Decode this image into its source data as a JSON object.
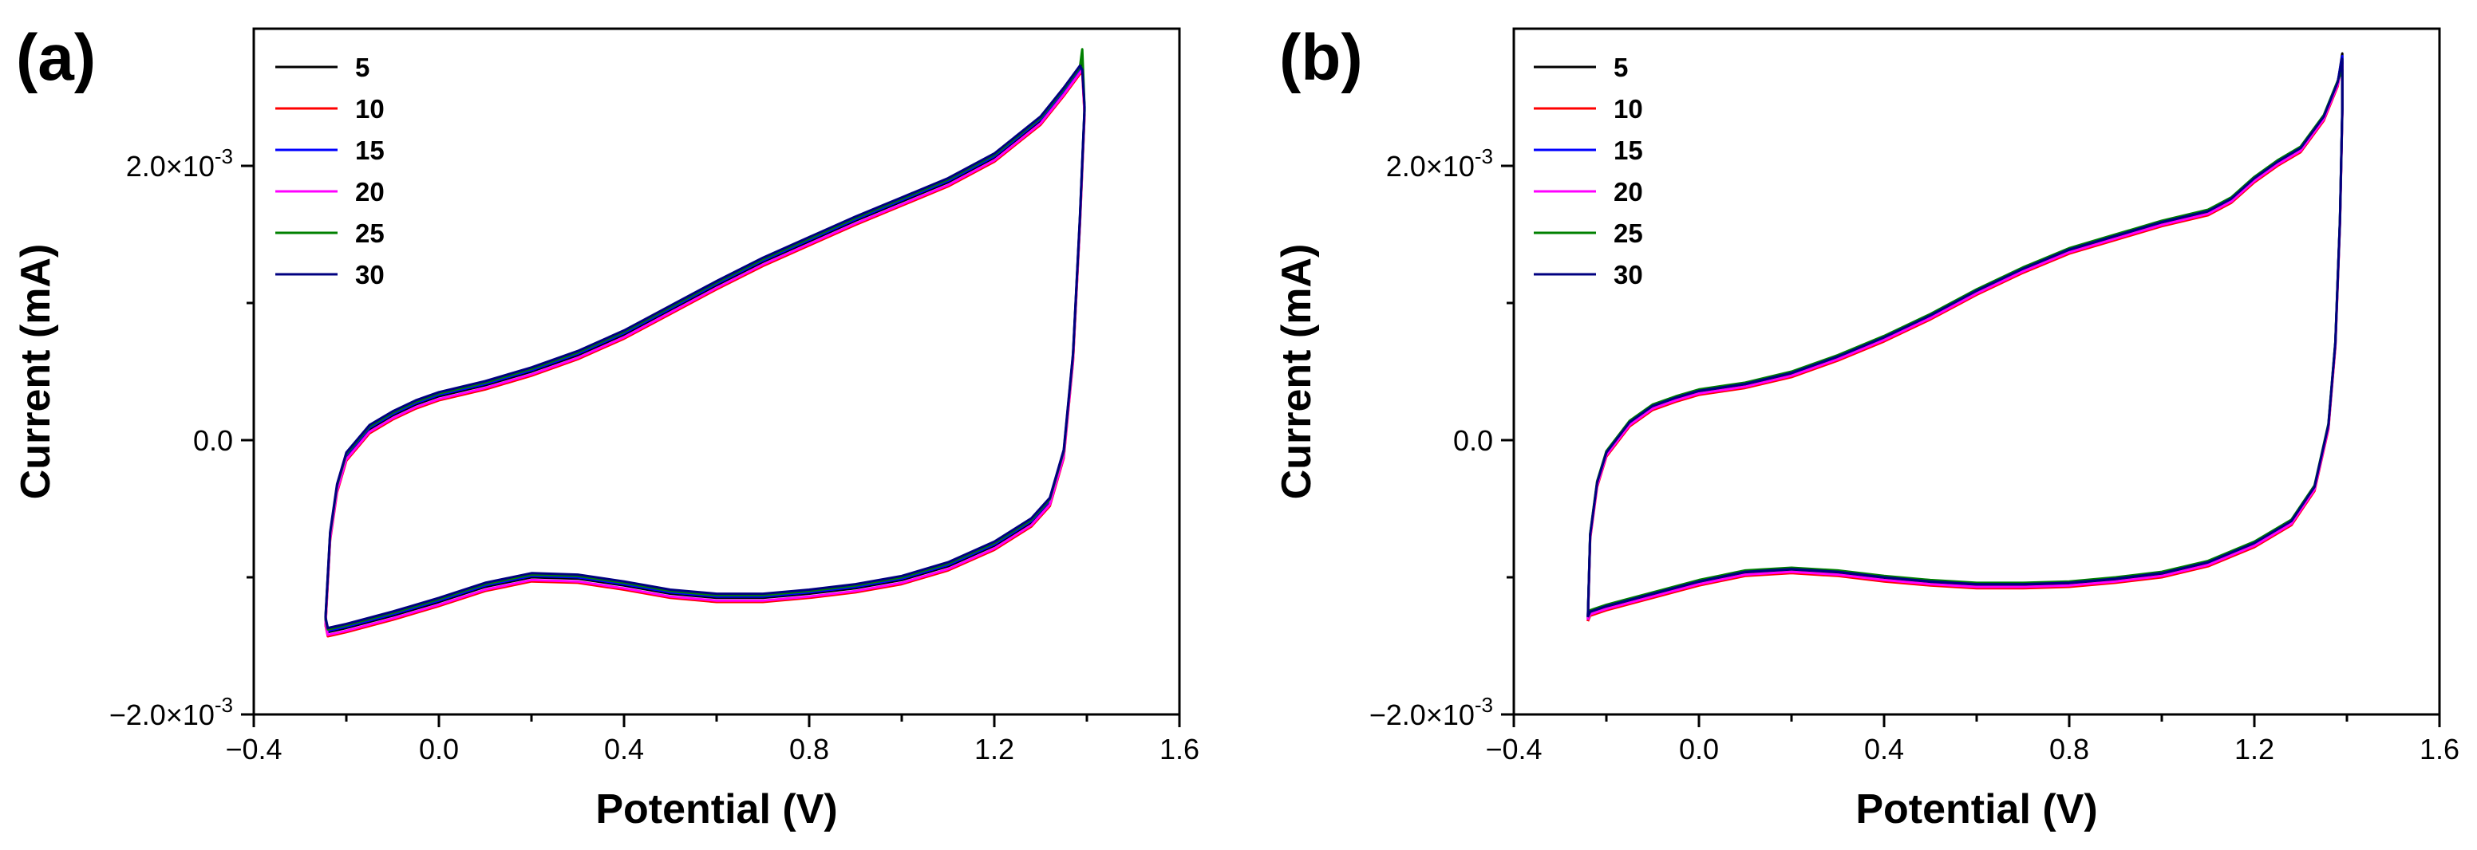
{
  "chart_data": [
    {
      "type": "line",
      "panel_label": "(a)",
      "xlabel": "Potential (V)",
      "ylabel": "Current (mA)",
      "xlim": [
        -0.4,
        1.6
      ],
      "ylim": [
        -0.002,
        0.003
      ],
      "xticks": [
        -0.4,
        0.0,
        0.4,
        0.8,
        1.2,
        1.6
      ],
      "xtick_labels": [
        "−0.4",
        "0.0",
        "0.4",
        "0.8",
        "1.2",
        "1.6"
      ],
      "yticks": [
        -0.002,
        0.0,
        0.002
      ],
      "ytick_labels": [
        {
          "base": "−2.0×10",
          "exp": "-3"
        },
        {
          "base": "0.0",
          "exp": ""
        },
        {
          "base": "2.0×10",
          "exp": "-3"
        }
      ],
      "legend_position": "top-left",
      "series": [
        {
          "name": "5",
          "color": "#000000"
        },
        {
          "name": "10",
          "color": "#ff0000"
        },
        {
          "name": "15",
          "color": "#0000ff"
        },
        {
          "name": "20",
          "color": "#ff00ff"
        },
        {
          "name": "25",
          "color": "#008000"
        },
        {
          "name": "30",
          "color": "#000080"
        }
      ],
      "cycle": {
        "anodic": [
          [
            -0.245,
            -0.00132
          ],
          [
            -0.235,
            -0.0007
          ],
          [
            -0.22,
            -0.00035
          ],
          [
            -0.2,
            -0.00012
          ],
          [
            -0.15,
            8e-05
          ],
          [
            -0.1,
            0.00018
          ],
          [
            -0.05,
            0.00026
          ],
          [
            0.0,
            0.00032
          ],
          [
            0.1,
            0.0004
          ],
          [
            0.2,
            0.0005
          ],
          [
            0.3,
            0.00062
          ],
          [
            0.4,
            0.00077
          ],
          [
            0.5,
            0.00095
          ],
          [
            0.6,
            0.00113
          ],
          [
            0.7,
            0.0013
          ],
          [
            0.8,
            0.00145
          ],
          [
            0.9,
            0.0016
          ],
          [
            1.0,
            0.00174
          ],
          [
            1.1,
            0.00188
          ],
          [
            1.2,
            0.00206
          ],
          [
            1.3,
            0.00233
          ],
          [
            1.35,
            0.00254
          ],
          [
            1.385,
            0.0027
          ]
        ],
        "cathodic": [
          [
            1.395,
            0.0024
          ],
          [
            1.385,
            0.0016
          ],
          [
            1.37,
            0.0006
          ],
          [
            1.35,
            -0.0001
          ],
          [
            1.32,
            -0.00045
          ],
          [
            1.28,
            -0.0006
          ],
          [
            1.2,
            -0.00077
          ],
          [
            1.1,
            -0.00092
          ],
          [
            1.0,
            -0.00102
          ],
          [
            0.9,
            -0.00108
          ],
          [
            0.8,
            -0.00112
          ],
          [
            0.7,
            -0.00115
          ],
          [
            0.6,
            -0.00115
          ],
          [
            0.5,
            -0.00112
          ],
          [
            0.4,
            -0.00106
          ],
          [
            0.3,
            -0.00101
          ],
          [
            0.2,
            -0.001
          ],
          [
            0.1,
            -0.00107
          ],
          [
            0.0,
            -0.00118
          ],
          [
            -0.1,
            -0.00128
          ],
          [
            -0.2,
            -0.00137
          ],
          [
            -0.24,
            -0.0014
          ],
          [
            -0.245,
            -0.00132
          ]
        ]
      },
      "cycle_shift": {
        "5": [
          0,
          0
        ],
        "10": [
          0.0,
          -3e-05
        ],
        "15": [
          0.0,
          1e-05
        ],
        "20": [
          0.0,
          -2e-05
        ],
        "25": [
          0.0,
          2e-05
        ],
        "30": [
          0.0,
          3e-05
        ]
      },
      "cycle_peak": {
        "5": 0.00275,
        "10": 0.00268,
        "15": 0.00272,
        "20": 0.0027,
        "25": 0.00285,
        "30": 0.0027
      }
    },
    {
      "type": "line",
      "panel_label": "(b)",
      "xlabel": "Potential (V)",
      "ylabel": "Current (mA)",
      "xlim": [
        -0.4,
        1.6
      ],
      "ylim": [
        -0.002,
        0.003
      ],
      "xticks": [
        -0.4,
        0.0,
        0.4,
        0.8,
        1.2,
        1.6
      ],
      "xtick_labels": [
        "−0.4",
        "0.0",
        "0.4",
        "0.8",
        "1.2",
        "1.6"
      ],
      "yticks": [
        -0.002,
        0.0,
        0.002
      ],
      "ytick_labels": [
        {
          "base": "−2.0×10",
          "exp": "-3"
        },
        {
          "base": "0.0",
          "exp": ""
        },
        {
          "base": "2.0×10",
          "exp": "-3"
        }
      ],
      "legend_position": "top-left",
      "series": [
        {
          "name": "5",
          "color": "#000000"
        },
        {
          "name": "10",
          "color": "#ff0000"
        },
        {
          "name": "15",
          "color": "#0000ff"
        },
        {
          "name": "20",
          "color": "#ff00ff"
        },
        {
          "name": "25",
          "color": "#008000"
        },
        {
          "name": "30",
          "color": "#000080"
        }
      ],
      "cycle": {
        "anodic": [
          [
            -0.24,
            -0.0013
          ],
          [
            -0.235,
            -0.0007
          ],
          [
            -0.22,
            -0.00032
          ],
          [
            -0.2,
            -0.0001
          ],
          [
            -0.15,
            0.00012
          ],
          [
            -0.1,
            0.00024
          ],
          [
            -0.05,
            0.0003
          ],
          [
            0.0,
            0.00035
          ],
          [
            0.1,
            0.0004
          ],
          [
            0.2,
            0.00048
          ],
          [
            0.3,
            0.0006
          ],
          [
            0.4,
            0.00074
          ],
          [
            0.5,
            0.0009
          ],
          [
            0.6,
            0.00108
          ],
          [
            0.7,
            0.00124
          ],
          [
            0.8,
            0.00138
          ],
          [
            0.9,
            0.00148
          ],
          [
            1.0,
            0.00158
          ],
          [
            1.1,
            0.00166
          ],
          [
            1.15,
            0.00175
          ],
          [
            1.2,
            0.0019
          ],
          [
            1.25,
            0.00202
          ],
          [
            1.3,
            0.00212
          ],
          [
            1.35,
            0.00235
          ],
          [
            1.38,
            0.0026
          ]
        ],
        "cathodic": [
          [
            1.39,
            0.0024
          ],
          [
            1.385,
            0.0016
          ],
          [
            1.375,
            0.0007
          ],
          [
            1.36,
            0.0001
          ],
          [
            1.33,
            -0.00035
          ],
          [
            1.28,
            -0.0006
          ],
          [
            1.2,
            -0.00076
          ],
          [
            1.1,
            -0.0009
          ],
          [
            1.0,
            -0.00098
          ],
          [
            0.9,
            -0.00102
          ],
          [
            0.8,
            -0.00105
          ],
          [
            0.7,
            -0.00106
          ],
          [
            0.6,
            -0.00106
          ],
          [
            0.5,
            -0.00104
          ],
          [
            0.4,
            -0.00101
          ],
          [
            0.3,
            -0.00097
          ],
          [
            0.2,
            -0.00095
          ],
          [
            0.1,
            -0.00097
          ],
          [
            0.0,
            -0.00104
          ],
          [
            -0.1,
            -0.00113
          ],
          [
            -0.2,
            -0.00122
          ],
          [
            -0.235,
            -0.00126
          ],
          [
            -0.24,
            -0.0013
          ]
        ]
      },
      "cycle_shift": {
        "5": [
          0,
          0
        ],
        "10": [
          0.0,
          -2e-05
        ],
        "15": [
          0.0,
          1e-05
        ],
        "20": [
          0.0,
          -1e-05
        ],
        "25": [
          0.0,
          2e-05
        ],
        "30": [
          0.0,
          1e-05
        ]
      },
      "cycle_peak": {
        "5": 0.00282,
        "10": 0.00276,
        "15": 0.0028,
        "20": 0.00274,
        "25": 0.0027,
        "30": 0.00278
      }
    }
  ]
}
